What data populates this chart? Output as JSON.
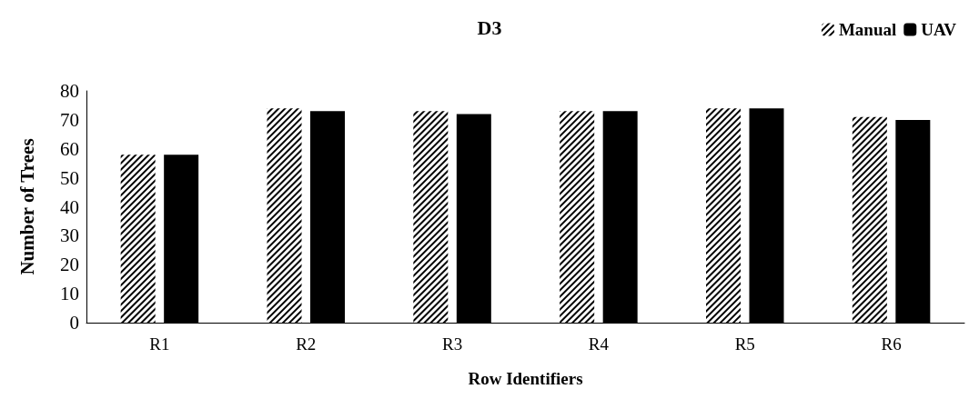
{
  "chart_data": {
    "type": "bar",
    "title": "D3",
    "xlabel": "Row Identifiers",
    "ylabel": "Number of Trees",
    "categories": [
      "R1",
      "R2",
      "R3",
      "R4",
      "R5",
      "R6"
    ],
    "series": [
      {
        "name": "Manual",
        "color": "#000000",
        "values": [
          58,
          74,
          73,
          73,
          74,
          71
        ]
      },
      {
        "name": "UAV",
        "color": "#000000",
        "values": [
          58,
          73,
          72,
          73,
          74,
          70
        ]
      }
    ],
    "ylim": [
      0,
      80
    ],
    "yticks": [
      0,
      10,
      20,
      30,
      40,
      50,
      60,
      70,
      80
    ],
    "grid": false,
    "legend": "top right"
  }
}
